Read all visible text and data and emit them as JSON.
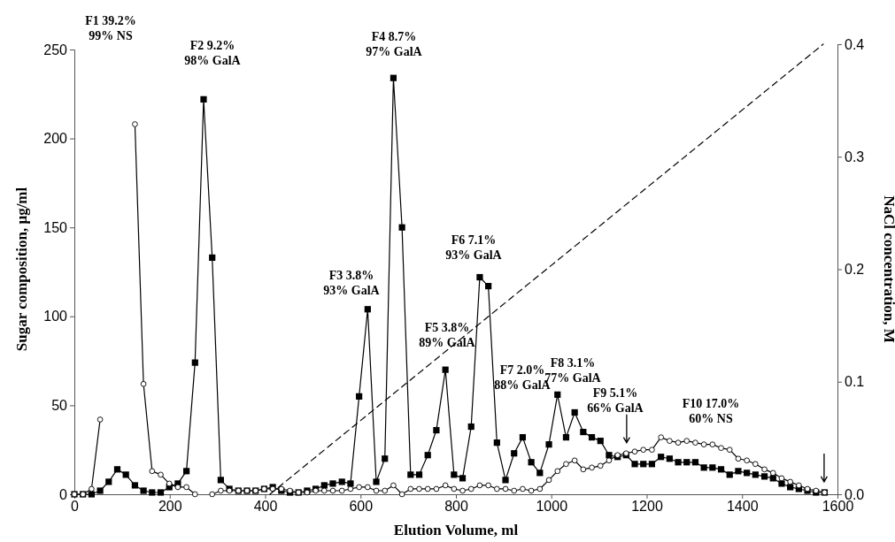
{
  "chart_data": {
    "type": "line",
    "xlabel": "Elution Volume, ml",
    "ylabel": "Sugar composition, μg/ml",
    "y2label": "NaCl concentration, M",
    "x": [
      0,
      18,
      36,
      54,
      72,
      90,
      108,
      127,
      145,
      163,
      181,
      199,
      217,
      235,
      253,
      271,
      289,
      307,
      325,
      344,
      362,
      380,
      398,
      416,
      434,
      452,
      470,
      488,
      506,
      524,
      542,
      561,
      579,
      597,
      615,
      633,
      651,
      669,
      687,
      705,
      723,
      741,
      759,
      778,
      796,
      814,
      832,
      850,
      868,
      886,
      904,
      922,
      940,
      958,
      976,
      995,
      1013,
      1031,
      1049,
      1067,
      1085,
      1103,
      1121,
      1139,
      1157,
      1175,
      1193,
      1211,
      1230,
      1248,
      1266,
      1284,
      1302,
      1320,
      1338,
      1356,
      1374,
      1392,
      1410,
      1428,
      1447,
      1465,
      1483,
      1501,
      1519,
      1537,
      1555,
      1573
    ],
    "series": [
      {
        "color": "#000000",
        "marker": "square",
        "values": [
          0,
          0,
          0,
          2,
          7,
          14,
          11,
          5,
          2,
          1,
          1,
          4,
          6,
          13,
          74,
          222,
          133,
          8,
          3,
          2,
          2,
          2,
          3,
          4,
          2,
          1,
          1,
          2,
          3,
          5,
          6,
          7,
          6,
          55,
          104,
          7,
          20,
          234,
          150,
          11,
          11,
          22,
          36,
          70,
          11,
          9,
          38,
          122,
          117,
          29,
          8,
          23,
          32,
          18,
          12,
          28,
          56,
          32,
          46,
          35,
          32,
          30,
          22,
          21,
          22,
          17,
          17,
          17,
          21,
          20,
          18,
          18,
          18,
          15,
          15,
          14,
          11,
          13,
          12,
          11,
          10,
          9,
          6,
          4,
          3,
          2,
          1,
          1
        ]
      },
      {
        "color": "#000000",
        "marker": "circle",
        "values": [
          0,
          0,
          3,
          42,
          null,
          null,
          null,
          208,
          62,
          13,
          11,
          6,
          4,
          4,
          0,
          null,
          0,
          2,
          2,
          2,
          2,
          2,
          3,
          3,
          3,
          2,
          1,
          1,
          2,
          2,
          2,
          2,
          3,
          4,
          4,
          2,
          2,
          5,
          0,
          3,
          3,
          3,
          3,
          5,
          3,
          2,
          3,
          5,
          5,
          3,
          3,
          2,
          3,
          2,
          3,
          8,
          13,
          17,
          19,
          14,
          15,
          16,
          19,
          22,
          23,
          24,
          25,
          25,
          32,
          30,
          29,
          30,
          29,
          28,
          28,
          26,
          25,
          20,
          19,
          17,
          14,
          12,
          9,
          7,
          5,
          3,
          2,
          1
        ]
      },
      {
        "color": "#000000",
        "axis": "y2",
        "marker": "none",
        "line_style": "dashed",
        "x": [
          410,
          1570
        ],
        "values": [
          0,
          0.4
        ]
      }
    ],
    "xlim": [
      0,
      1600
    ],
    "xticks": [
      0,
      200,
      400,
      600,
      800,
      1000,
      1200,
      1400,
      1600
    ],
    "ylim": [
      0,
      250
    ],
    "yticks": [
      0,
      50,
      100,
      150,
      200,
      250
    ],
    "y2lim": [
      0,
      0.4
    ],
    "y2ticks": [
      {
        "value": 0,
        "label": "0.0"
      },
      {
        "value": 0.1,
        "label": "0.1"
      },
      {
        "value": 0.2,
        "label": "0.2"
      },
      {
        "value": 0.3,
        "label": "0.3"
      },
      {
        "value": 0.4,
        "label": "0.4"
      }
    ],
    "grid": false,
    "annotations": [
      "F1 39.2%\n99% NS",
      "F2 9.2%\n98% GalA",
      "F3 3.8%\n93% GalA",
      "F4 8.7%\n97% GalA",
      "F5 3.8%\n89% GalA",
      "F6 7.1%\n93% GalA",
      "F7 2.0%\n88% GalA",
      "F8 3.1%\n77% GalA",
      "F9 5.1%\n66% GalA",
      "F10 17.0%\n60% NS"
    ]
  }
}
